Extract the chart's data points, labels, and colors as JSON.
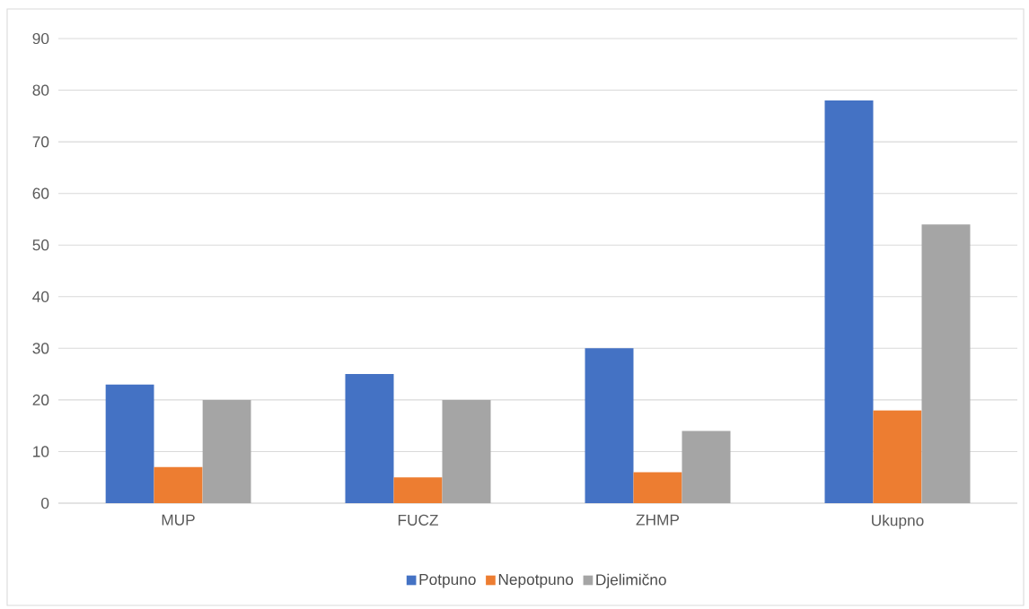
{
  "chart_data": {
    "type": "bar",
    "categories": [
      "MUP",
      "FUCZ",
      "ZHMP",
      "Ukupno"
    ],
    "series": [
      {
        "name": "Potpuno",
        "color": "#4472c4",
        "values": [
          23,
          25,
          30,
          78
        ]
      },
      {
        "name": "Nepotpuno",
        "color": "#ed7d31",
        "values": [
          7,
          5,
          6,
          18
        ]
      },
      {
        "name": "Djelimično",
        "color": "#a5a5a5",
        "values": [
          20,
          20,
          14,
          54
        ]
      }
    ],
    "ylim": [
      0,
      90
    ],
    "yticks": [
      0,
      10,
      20,
      30,
      40,
      50,
      60,
      70,
      80,
      90
    ],
    "grid": "y",
    "legend": "bottom"
  }
}
